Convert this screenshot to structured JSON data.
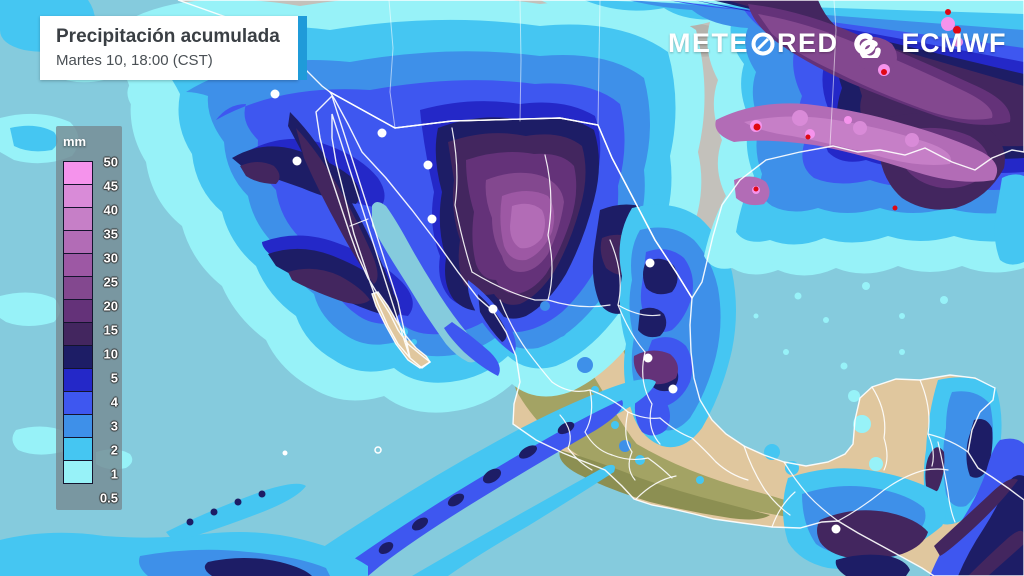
{
  "title_card": {
    "title": "Precipitación acumulada",
    "subtitle": "Martes 10, 18:00 (CST)",
    "accent_color": "#1F9BD9"
  },
  "brand": {
    "meteored_prefix": "METE",
    "meteored_suffix": "RED",
    "ecmwf": "ECMWF"
  },
  "legend": {
    "unit": "mm",
    "boundary_labels": [
      "50",
      "45",
      "40",
      "35",
      "30",
      "25",
      "20",
      "15",
      "10",
      "5",
      "4",
      "3",
      "2",
      "1",
      "0.5"
    ],
    "band_colors_top_to_bottom": [
      "#F593EC",
      "#D98BD8",
      "#C67FC7",
      "#B26CB6",
      "#9D58A4",
      "#83488F",
      "#643279",
      "#43265F",
      "#1D1D66",
      "#2428C8",
      "#3E57F0",
      "#3E90E9",
      "#45C6F2",
      "#97F2F8"
    ]
  },
  "map": {
    "region": "Mexico and southern United States",
    "colors": {
      "ocean": "#85CBDD",
      "land_us": "#C3C1BB",
      "land_lowland": "#E0C79E",
      "land_highland": "#A3A364",
      "border_lines": "#FFFFFF",
      "extreme_precipitation": "#E00814"
    }
  }
}
